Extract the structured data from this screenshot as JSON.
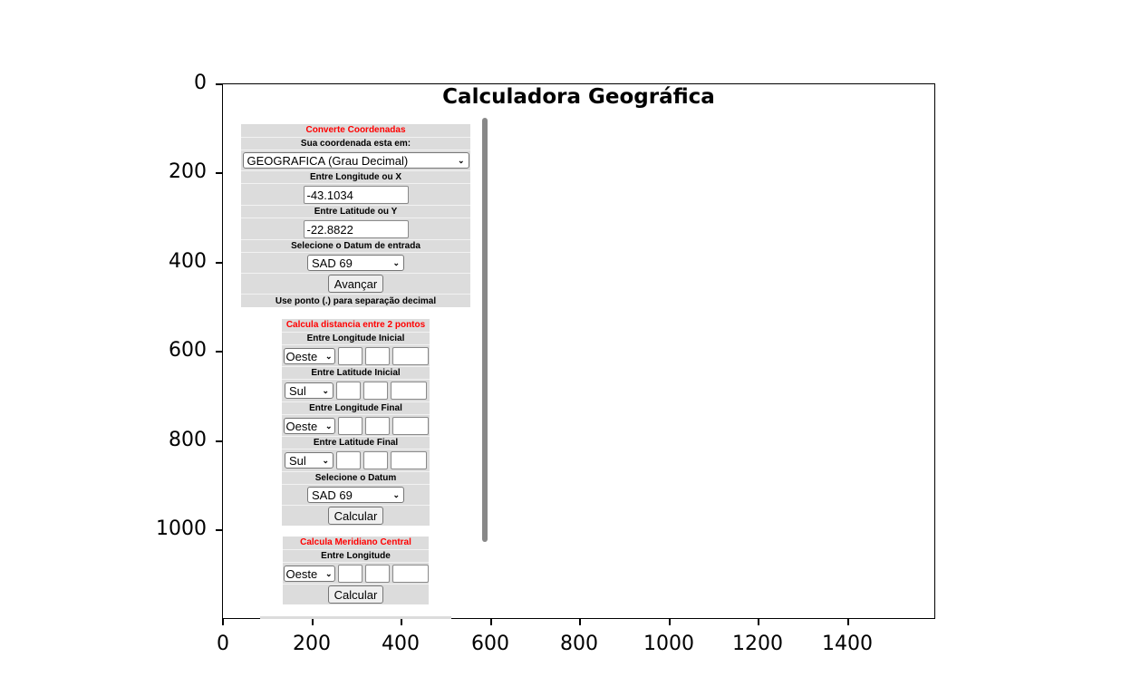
{
  "axes": {
    "y_ticks": [
      "0",
      "200",
      "400",
      "600",
      "800",
      "1000"
    ],
    "x_ticks": [
      "0",
      "200",
      "400",
      "600",
      "800",
      "1000",
      "1200",
      "1400"
    ]
  },
  "title": "Calculadora Geográfica",
  "converte": {
    "heading": "Converte Coordenadas",
    "coord_label": "Sua coordenada esta em:",
    "coord_select": "GEOGRAFICA (Grau Decimal)",
    "lon_label": "Entre Longitude ou X",
    "lon_value": "-43.1034",
    "lat_label": "Entre Latitude ou Y",
    "lat_value": "-22.8822",
    "datum_label": "Selecione o Datum de entrada",
    "datum_select": "SAD 69",
    "button": "Avançar",
    "note": "Use ponto (.) para separação decimal"
  },
  "distancia": {
    "heading": "Calcula distancia entre 2 pontos",
    "lon_ini_label": "Entre Longitude Inicial",
    "lon_ini_dir": "Oeste",
    "lat_ini_label": "Entre Latitude Inicial",
    "lat_ini_dir": "Sul",
    "lon_fin_label": "Entre Longitude Final",
    "lon_fin_dir": "Oeste",
    "lat_fin_label": "Entre Latitude Final",
    "lat_fin_dir": "Sul",
    "datum_label": "Selecione o Datum",
    "datum_select": "SAD 69",
    "button": "Calcular"
  },
  "meridiano": {
    "heading": "Calcula Meridiano Central",
    "lon_label": "Entre Longitude",
    "lon_dir": "Oeste",
    "button": "Calcular"
  }
}
